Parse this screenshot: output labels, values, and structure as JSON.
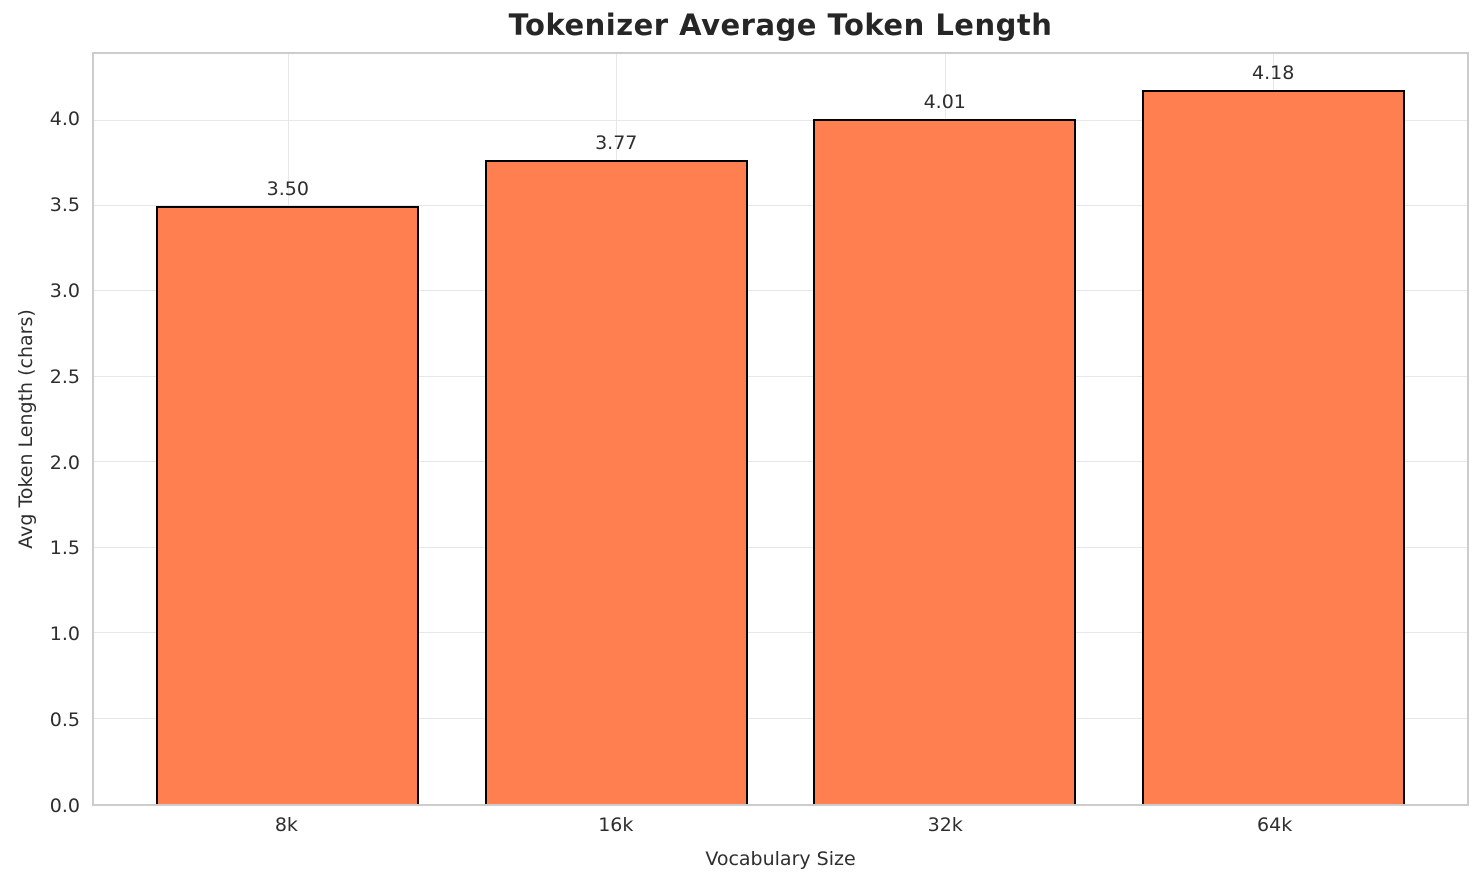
{
  "chart_data": {
    "type": "bar",
    "title": "Tokenizer Average Token Length",
    "xlabel": "Vocabulary Size",
    "ylabel": "Avg Token Length (chars)",
    "categories": [
      "8k",
      "16k",
      "32k",
      "64k"
    ],
    "values": [
      3.5,
      3.77,
      4.01,
      4.18
    ],
    "value_labels": [
      "3.50",
      "3.77",
      "4.01",
      "4.18"
    ],
    "yticks": [
      {
        "value": 0.0,
        "label": "0.0"
      },
      {
        "value": 0.5,
        "label": "0.5"
      },
      {
        "value": 1.0,
        "label": "1.0"
      },
      {
        "value": 1.5,
        "label": "1.5"
      },
      {
        "value": 2.0,
        "label": "2.0"
      },
      {
        "value": 2.5,
        "label": "2.5"
      },
      {
        "value": 3.0,
        "label": "3.0"
      },
      {
        "value": 3.5,
        "label": "3.5"
      },
      {
        "value": 4.0,
        "label": "4.0"
      }
    ],
    "ylim": [
      0,
      4.39
    ],
    "xlim": [
      -0.59,
      3.59
    ],
    "bar_width_units": 0.8,
    "grid": "both",
    "legend": "none",
    "colors": {
      "bar_fill": "#FF7F50",
      "bar_edge": "#000000",
      "grid_line": "#E7E7E7",
      "plot_border": "#CCCCCC",
      "text": "#2E2E2E",
      "background": "#FFFFFF"
    }
  }
}
